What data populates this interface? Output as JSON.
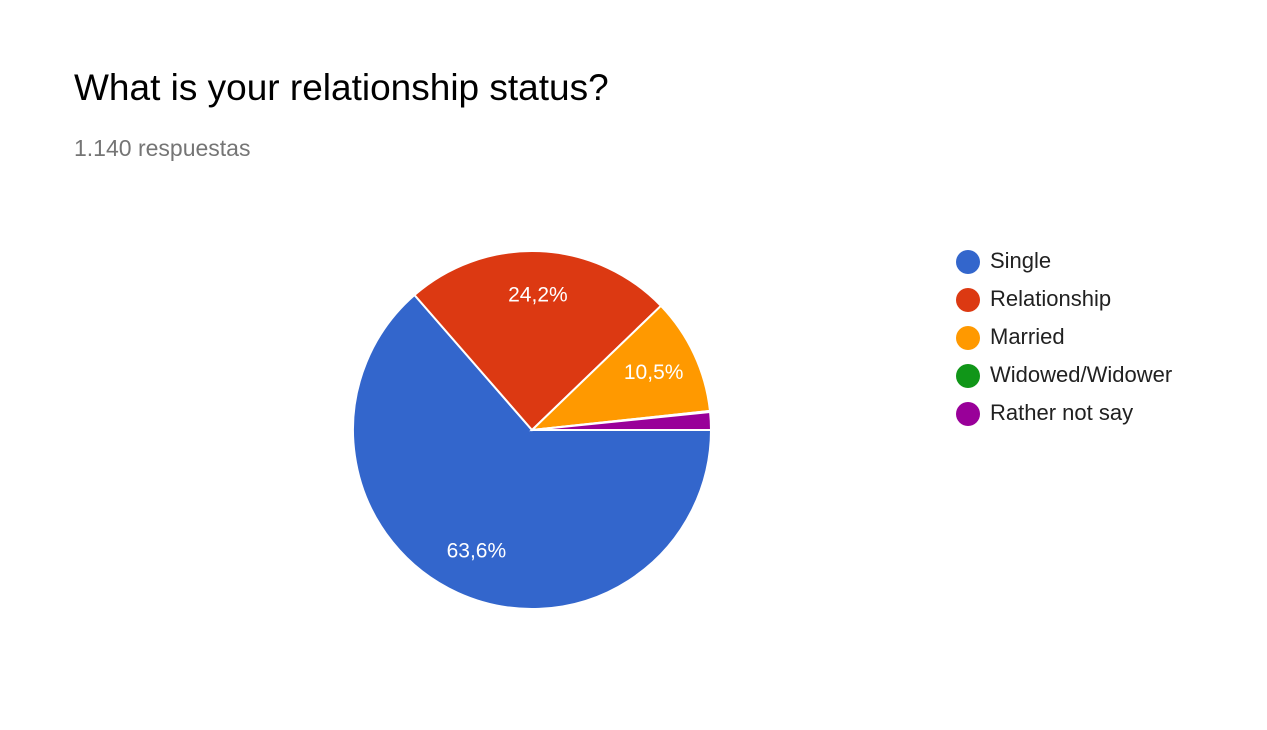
{
  "chart_data": {
    "type": "pie",
    "title": "What is your relationship status?",
    "subtitle": "1.140 respuestas",
    "categories": [
      "Single",
      "Relationship",
      "Married",
      "Widowed/Widower",
      "Rather not say"
    ],
    "values": [
      63.6,
      24.2,
      10.5,
      0.1,
      1.6
    ],
    "value_labels": [
      "63,6%",
      "24,2%",
      "10,5%",
      null,
      null
    ],
    "colors": [
      "#3366cc",
      "#dc3912",
      "#ff9900",
      "#109618",
      "#990099"
    ],
    "legend": "right"
  }
}
